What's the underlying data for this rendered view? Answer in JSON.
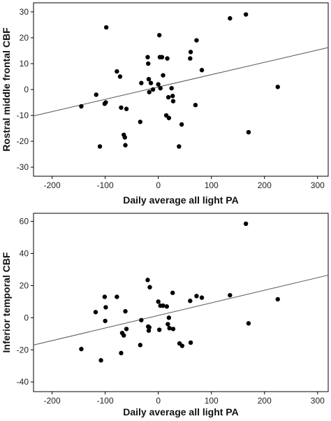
{
  "chart_data": [
    {
      "type": "scatter",
      "xlabel": "Daily average all light PA",
      "ylabel": "Rostral middle frontal CBF",
      "xlim": [
        -235,
        320
      ],
      "ylim": [
        -33.5,
        33.5
      ],
      "xticks": [
        -200,
        -100,
        0,
        100,
        200,
        300
      ],
      "yticks": [
        -30,
        -20,
        -10,
        0,
        10,
        20,
        30
      ],
      "fit_line": [
        [
          -235,
          -10.2
        ],
        [
          320,
          16.2
        ]
      ],
      "grid": false,
      "points": [
        {
          "x": -145,
          "y": -6.5
        },
        {
          "x": -117,
          "y": -2
        },
        {
          "x": -110,
          "y": -22
        },
        {
          "x": -101,
          "y": -5.5
        },
        {
          "x": -99,
          "y": -5
        },
        {
          "x": -98,
          "y": 24
        },
        {
          "x": -78,
          "y": 7
        },
        {
          "x": -72,
          "y": 5
        },
        {
          "x": -70,
          "y": -7
        },
        {
          "x": -65,
          "y": -17.5
        },
        {
          "x": -63,
          "y": -18.5
        },
        {
          "x": -62,
          "y": -21.5
        },
        {
          "x": -60,
          "y": -7.5
        },
        {
          "x": -34,
          "y": -12.5
        },
        {
          "x": -32,
          "y": 2.5
        },
        {
          "x": -20,
          "y": 12.5
        },
        {
          "x": -19,
          "y": 10
        },
        {
          "x": -18,
          "y": 4
        },
        {
          "x": -17,
          "y": -1
        },
        {
          "x": -14,
          "y": 2.5
        },
        {
          "x": -10,
          "y": 0
        },
        {
          "x": 0,
          "y": 2
        },
        {
          "x": 2,
          "y": 21
        },
        {
          "x": 3,
          "y": 12.5
        },
        {
          "x": 4,
          "y": 0.5
        },
        {
          "x": 7,
          "y": 12.5
        },
        {
          "x": 9,
          "y": 5.5
        },
        {
          "x": 15,
          "y": -10
        },
        {
          "x": 17,
          "y": 12
        },
        {
          "x": 19,
          "y": -3
        },
        {
          "x": 20,
          "y": -11
        },
        {
          "x": 25,
          "y": 0.5
        },
        {
          "x": 27,
          "y": -2.5
        },
        {
          "x": 28,
          "y": -4.5
        },
        {
          "x": 39,
          "y": -22
        },
        {
          "x": 44,
          "y": -13.5
        },
        {
          "x": 60,
          "y": 12
        },
        {
          "x": 61,
          "y": 14.5
        },
        {
          "x": 70,
          "y": -6
        },
        {
          "x": 72,
          "y": 19
        },
        {
          "x": 82,
          "y": 7.5
        },
        {
          "x": 135,
          "y": 27.5
        },
        {
          "x": 165,
          "y": 29
        },
        {
          "x": 170,
          "y": -16.5
        },
        {
          "x": 225,
          "y": 1
        }
      ]
    },
    {
      "type": "scatter",
      "xlabel": "Daily average all light PA",
      "ylabel": "Inferior temporal CBF",
      "xlim": [
        -235,
        320
      ],
      "ylim": [
        -46,
        65
      ],
      "xticks": [
        -200,
        -100,
        0,
        100,
        200,
        300
      ],
      "yticks": [
        -40,
        -20,
        0,
        20,
        40,
        60
      ],
      "fit_line": [
        [
          -235,
          -17
        ],
        [
          320,
          26.5
        ]
      ],
      "grid": false,
      "points": [
        {
          "x": -145,
          "y": -19.5
        },
        {
          "x": -118,
          "y": 3.5
        },
        {
          "x": -108,
          "y": -26.5
        },
        {
          "x": -101,
          "y": 13
        },
        {
          "x": -100,
          "y": -2
        },
        {
          "x": -99,
          "y": 6.5
        },
        {
          "x": -78,
          "y": 13
        },
        {
          "x": -70,
          "y": -22
        },
        {
          "x": -68,
          "y": -9.5
        },
        {
          "x": -65,
          "y": -11
        },
        {
          "x": -62,
          "y": 4
        },
        {
          "x": -60,
          "y": -7
        },
        {
          "x": -34,
          "y": -17
        },
        {
          "x": -32,
          "y": -1.5
        },
        {
          "x": -20,
          "y": 23.5
        },
        {
          "x": -19,
          "y": -5.5
        },
        {
          "x": -18,
          "y": -8
        },
        {
          "x": -17,
          "y": -6
        },
        {
          "x": -16,
          "y": 19
        },
        {
          "x": 0,
          "y": 10
        },
        {
          "x": 2,
          "y": -7.5
        },
        {
          "x": 4,
          "y": 7.5
        },
        {
          "x": 9,
          "y": 7.5
        },
        {
          "x": 16,
          "y": 7
        },
        {
          "x": 18,
          "y": -4
        },
        {
          "x": 20,
          "y": 0
        },
        {
          "x": 21,
          "y": -6.5
        },
        {
          "x": 27,
          "y": 15.5
        },
        {
          "x": 28,
          "y": -7
        },
        {
          "x": 40,
          "y": -16
        },
        {
          "x": 45,
          "y": -17.5
        },
        {
          "x": 60,
          "y": 10.5
        },
        {
          "x": 61,
          "y": -15.5
        },
        {
          "x": 72,
          "y": 13.5
        },
        {
          "x": 82,
          "y": 12.5
        },
        {
          "x": 135,
          "y": 14
        },
        {
          "x": 165,
          "y": 58.5
        },
        {
          "x": 170,
          "y": -3.5
        },
        {
          "x": 225,
          "y": 11.5
        }
      ]
    }
  ]
}
